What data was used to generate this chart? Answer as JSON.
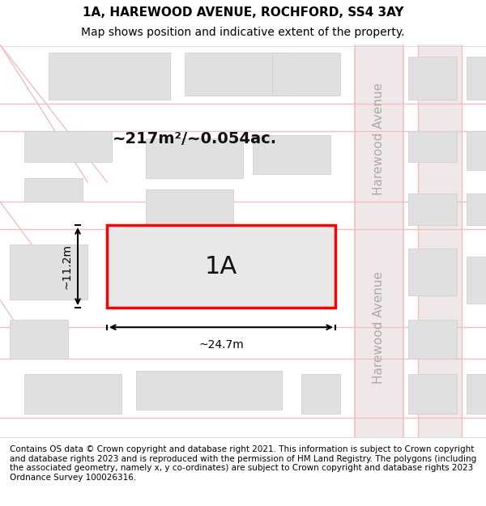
{
  "title_line1": "1A, HAREWOOD AVENUE, ROCHFORD, SS4 3AY",
  "title_line2": "Map shows position and indicative extent of the property.",
  "footer_text": "Contains OS data © Crown copyright and database right 2021. This information is subject to Crown copyright and database rights 2023 and is reproduced with the permission of HM Land Registry. The polygons (including the associated geometry, namely x, y co-ordinates) are subject to Crown copyright and database rights 2023 Ordnance Survey 100026316.",
  "bg_color": "#f5f5f5",
  "map_bg": "#ffffff",
  "title_bg": "#ffffff",
  "footer_bg": "#ffffff",
  "road_color": "#f0c0c0",
  "road_fill": "#f5e8e8",
  "block_fill": "#e0e0e0",
  "block_edge": "#cccccc",
  "highlight_fill": "#e8e8e8",
  "highlight_edge": "#ff0000",
  "highlight_edge_width": 2.5,
  "street_label1": "Harewood Avenue",
  "street_label2": "Harewood Avenue",
  "area_label": "~217m²/~0.054ac.",
  "property_label": "1A",
  "dim_width": "~24.7m",
  "dim_height": "~11.2m",
  "title_fontsize": 11,
  "subtitle_fontsize": 10,
  "label_fontsize": 14,
  "property_fontsize": 22,
  "street_fontsize": 11,
  "footer_fontsize": 7.5
}
